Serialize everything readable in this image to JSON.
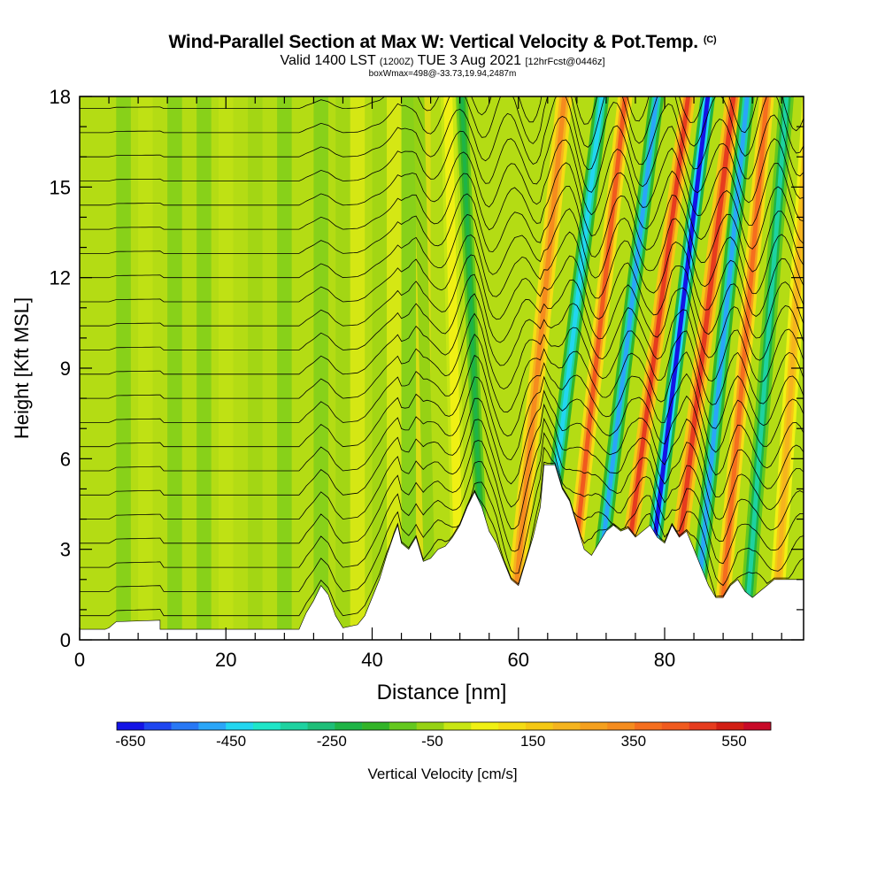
{
  "header": {
    "title": "Wind-Parallel Section at Max W: Vertical Velocity & Pot.Temp.",
    "copyright": "(C)",
    "subtitle_valid": "Valid 1400 LST",
    "subtitle_utc": "(1200Z)",
    "subtitle_date": "TUE 3 Aug 2021",
    "subtitle_fcst": "[12hrFcst@0446z]",
    "box_line": "boxWmax=498@-33.73,19.94,2487m"
  },
  "chart_data": {
    "type": "heatmap",
    "title": "Wind-Parallel Section at Max W: Vertical Velocity & Pot.Temp.",
    "xlabel": "Distance [nm]",
    "ylabel": "Height [Kft MSL]",
    "xlim": [
      0,
      99
    ],
    "ylim": [
      0,
      18
    ],
    "x_ticks": [
      0,
      20,
      40,
      60,
      80
    ],
    "y_ticks": [
      0,
      3,
      6,
      9,
      12,
      15,
      18
    ],
    "colorbar": {
      "label": "Vertical Velocity [cm/s]",
      "min": -650,
      "max": 650,
      "step": 50,
      "tick_labels": [
        "-650",
        "-450",
        "-250",
        "-50",
        "150",
        "350",
        "550"
      ],
      "colors": [
        "#1414e6",
        "#1e46f0",
        "#2878f5",
        "#2aa6f8",
        "#22d6f0",
        "#1ee6c8",
        "#1ed2a0",
        "#1ebe78",
        "#1eb446",
        "#32b428",
        "#64c81e",
        "#96d214",
        "#c8e614",
        "#f0f014",
        "#f5dc14",
        "#f5c814",
        "#f5b41e",
        "#f5a01e",
        "#f58c1e",
        "#f56e1e",
        "#f05a1e",
        "#e63c1e",
        "#d21e14",
        "#c80a28"
      ]
    },
    "terrain_kft": [
      [
        0,
        0.35
      ],
      [
        3.5,
        0.35
      ],
      [
        4,
        0.4
      ],
      [
        5,
        0.6
      ],
      [
        11,
        0.65
      ],
      [
        11,
        0.35
      ],
      [
        14,
        0.35
      ],
      [
        15,
        0.35
      ],
      [
        30,
        0.35
      ],
      [
        31,
        0.9
      ],
      [
        32,
        1.3
      ],
      [
        33,
        1.8
      ],
      [
        34,
        1.5
      ],
      [
        35,
        0.8
      ],
      [
        36,
        0.4
      ],
      [
        38,
        0.5
      ],
      [
        39,
        0.8
      ],
      [
        40,
        1.4
      ],
      [
        41,
        2.0
      ],
      [
        42,
        2.8
      ],
      [
        43,
        3.5
      ],
      [
        43.5,
        3.8
      ],
      [
        44,
        3.2
      ],
      [
        45,
        3.0
      ],
      [
        46,
        3.4
      ],
      [
        47,
        2.6
      ],
      [
        48,
        2.7
      ],
      [
        49,
        3.0
      ],
      [
        50,
        3.1
      ],
      [
        51,
        3.4
      ],
      [
        52,
        3.8
      ],
      [
        53,
        4.4
      ],
      [
        54,
        4.9
      ],
      [
        55,
        4.4
      ],
      [
        56,
        3.6
      ],
      [
        57,
        3.2
      ],
      [
        58,
        2.6
      ],
      [
        59,
        2.0
      ],
      [
        60,
        1.8
      ],
      [
        61,
        2.6
      ],
      [
        62,
        3.4
      ],
      [
        63,
        4.4
      ],
      [
        63.5,
        5.8
      ],
      [
        65,
        5.8
      ],
      [
        66,
        5.0
      ],
      [
        67,
        4.6
      ],
      [
        68,
        3.8
      ],
      [
        69,
        3.0
      ],
      [
        70,
        2.8
      ],
      [
        71,
        3.2
      ],
      [
        72,
        3.6
      ],
      [
        73,
        3.8
      ],
      [
        74,
        3.6
      ],
      [
        75,
        3.7
      ],
      [
        76,
        3.4
      ],
      [
        77,
        3.6
      ],
      [
        78,
        3.8
      ],
      [
        79,
        3.4
      ],
      [
        80,
        3.2
      ],
      [
        81,
        3.8
      ],
      [
        82,
        3.4
      ],
      [
        83,
        3.6
      ],
      [
        84,
        3.0
      ],
      [
        85,
        2.4
      ],
      [
        86,
        1.8
      ],
      [
        87,
        1.4
      ],
      [
        88,
        1.4
      ],
      [
        89,
        1.8
      ],
      [
        90,
        2.0
      ],
      [
        91,
        1.6
      ],
      [
        92,
        1.4
      ],
      [
        93,
        1.6
      ],
      [
        94,
        1.8
      ],
      [
        95,
        2.0
      ],
      [
        96,
        2.0
      ],
      [
        99,
        2.0
      ]
    ],
    "wave_bands": [
      {
        "x0": 48,
        "slope": -0.1,
        "w_cm_s": -50,
        "width_nm": 1.5
      },
      {
        "x0": 52,
        "slope": -0.1,
        "w_cm_s": 100,
        "width_nm": 2.0
      },
      {
        "x0": 55.5,
        "slope": -0.2,
        "w_cm_s": -200,
        "width_nm": 1.6
      },
      {
        "x0": 59,
        "slope": 0.45,
        "w_cm_s": 350,
        "width_nm": 2.2
      },
      {
        "x0": 62.5,
        "slope": 0.55,
        "w_cm_s": -400,
        "width_nm": 2.0
      },
      {
        "x0": 66.5,
        "slope": 0.5,
        "w_cm_s": 450,
        "width_nm": 2.0
      },
      {
        "x0": 70,
        "slope": 0.55,
        "w_cm_s": -450,
        "width_nm": 2.0
      },
      {
        "x0": 73.5,
        "slope": 0.6,
        "w_cm_s": 500,
        "width_nm": 2.0
      },
      {
        "x0": 77,
        "slope": 0.55,
        "w_cm_s": -600,
        "width_nm": 2.0
      },
      {
        "x0": 80.5,
        "slope": 0.55,
        "w_cm_s": 500,
        "width_nm": 2.2
      },
      {
        "x0": 84,
        "slope": 0.45,
        "w_cm_s": -450,
        "width_nm": 2.0
      },
      {
        "x0": 87.5,
        "slope": 0.4,
        "w_cm_s": 400,
        "width_nm": 2.0
      },
      {
        "x0": 91,
        "slope": 0.35,
        "w_cm_s": -300,
        "width_nm": 2.0
      },
      {
        "x0": 95,
        "slope": 0.3,
        "w_cm_s": 250,
        "width_nm": 2.0
      }
    ]
  }
}
